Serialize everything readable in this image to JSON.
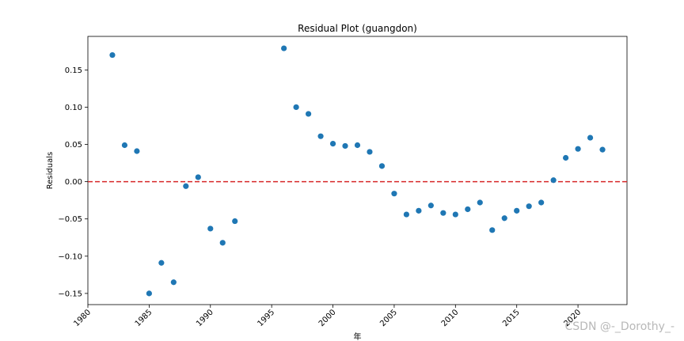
{
  "chart_data": {
    "type": "scatter",
    "title": "Residual Plot (guangdon)",
    "xlabel": "年",
    "ylabel": "Residuals",
    "xlim": [
      1980,
      2024
    ],
    "ylim": [
      -0.165,
      0.195
    ],
    "x_ticks": [
      1980,
      1985,
      1990,
      1995,
      2000,
      2005,
      2010,
      2015,
      2020
    ],
    "y_ticks": [
      -0.15,
      -0.1,
      -0.05,
      0.0,
      0.05,
      0.1,
      0.15
    ],
    "y_tick_labels": [
      "−0.15",
      "−0.10",
      "−0.05",
      "0.00",
      "0.05",
      "0.10",
      "0.15"
    ],
    "grid": false,
    "reference_line": {
      "y": 0.0,
      "color": "#d62728",
      "style": "dashed"
    },
    "point_color": "#1f77b4",
    "points": [
      {
        "x": 1982,
        "y": 0.17
      },
      {
        "x": 1983,
        "y": 0.049
      },
      {
        "x": 1984,
        "y": 0.041
      },
      {
        "x": 1985,
        "y": -0.15
      },
      {
        "x": 1986,
        "y": -0.109
      },
      {
        "x": 1987,
        "y": -0.135
      },
      {
        "x": 1988,
        "y": -0.006
      },
      {
        "x": 1989,
        "y": 0.006
      },
      {
        "x": 1990,
        "y": -0.063
      },
      {
        "x": 1991,
        "y": -0.082
      },
      {
        "x": 1992,
        "y": -0.053
      },
      {
        "x": 1996,
        "y": 0.179
      },
      {
        "x": 1997,
        "y": 0.1
      },
      {
        "x": 1998,
        "y": 0.091
      },
      {
        "x": 1999,
        "y": 0.061
      },
      {
        "x": 2000,
        "y": 0.051
      },
      {
        "x": 2001,
        "y": 0.048
      },
      {
        "x": 2002,
        "y": 0.049
      },
      {
        "x": 2003,
        "y": 0.04
      },
      {
        "x": 2004,
        "y": 0.021
      },
      {
        "x": 2005,
        "y": -0.016
      },
      {
        "x": 2006,
        "y": -0.044
      },
      {
        "x": 2007,
        "y": -0.039
      },
      {
        "x": 2008,
        "y": -0.032
      },
      {
        "x": 2009,
        "y": -0.042
      },
      {
        "x": 2010,
        "y": -0.044
      },
      {
        "x": 2011,
        "y": -0.037
      },
      {
        "x": 2012,
        "y": -0.028
      },
      {
        "x": 2013,
        "y": -0.065
      },
      {
        "x": 2014,
        "y": -0.049
      },
      {
        "x": 2015,
        "y": -0.039
      },
      {
        "x": 2016,
        "y": -0.033
      },
      {
        "x": 2017,
        "y": -0.028
      },
      {
        "x": 2018,
        "y": 0.002
      },
      {
        "x": 2019,
        "y": 0.032
      },
      {
        "x": 2020,
        "y": 0.044
      },
      {
        "x": 2021,
        "y": 0.059
      },
      {
        "x": 2022,
        "y": 0.043
      }
    ]
  },
  "watermark": "CSDN @-_Dorothy_-"
}
